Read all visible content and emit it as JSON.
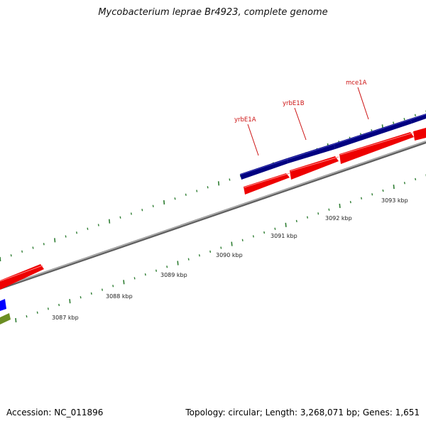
{
  "title": "Mycobacterium leprae Br4923, complete genome",
  "footer": {
    "accession": "Accession: NC_011896",
    "summary": "Topology: circular; Length: 3,268,071 bp; Genes: 1,651"
  },
  "colors": {
    "background": "#ffffff",
    "backbone": "#808080",
    "cds_forward": "#ff0000",
    "gene_forward": "#000080",
    "gene_blue": "#0000ff",
    "gene_olive": "#6b8e23",
    "tick": "#2e7d32",
    "label": "#cc1111"
  },
  "scale": {
    "unit": "kbp",
    "ticks": [
      {
        "label": "3087 kbp"
      },
      {
        "label": "3088 kbp"
      },
      {
        "label": "3089 kbp"
      },
      {
        "label": "3090 kbp"
      },
      {
        "label": "3091 kbp"
      },
      {
        "label": "3092 kbp"
      },
      {
        "label": "3093 kbp"
      }
    ]
  },
  "genes": [
    {
      "name": "yrbE1A"
    },
    {
      "name": "yrbE1B"
    },
    {
      "name": "mce1A"
    }
  ]
}
